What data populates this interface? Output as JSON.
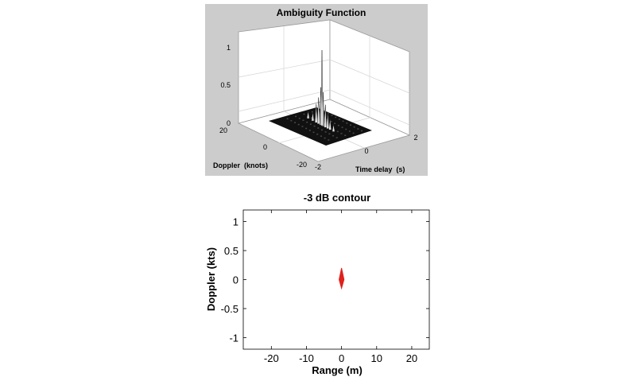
{
  "chart_data": [
    {
      "type": "surface",
      "title": "Ambiguity Function",
      "xlabel": "Time delay  (s)",
      "ylabel": "Doppler  (knots)",
      "zlabel": "",
      "x_ticks": [
        "-2",
        "0",
        "2"
      ],
      "y_ticks": [
        "-20",
        "0",
        "20"
      ],
      "z_ticks": [
        "0",
        "0.5",
        "1"
      ],
      "xlim": [
        -2,
        2
      ],
      "ylim": [
        -20,
        20
      ],
      "zlim": [
        0,
        1
      ],
      "peak": {
        "x": 0,
        "y": 0,
        "z": 1.0
      },
      "sidelobes": [
        {
          "x": -0.5,
          "y": 0,
          "z": 0.25
        },
        {
          "x": -0.3,
          "y": 0,
          "z": 0.35
        },
        {
          "x": -0.1,
          "y": 0,
          "z": 0.5
        },
        {
          "x": 0.1,
          "y": 0,
          "z": 0.45
        },
        {
          "x": 0.3,
          "y": 0,
          "z": 0.3
        },
        {
          "x": 0.5,
          "y": 0,
          "z": 0.22
        },
        {
          "x": 0.7,
          "y": 0,
          "z": 0.15
        },
        {
          "x": -0.8,
          "y": 0,
          "z": 0.12
        },
        {
          "x": -1.2,
          "y": 0,
          "z": 0.1
        },
        {
          "x": 1.0,
          "y": 0,
          "z": 0.1
        }
      ],
      "background": "#cccccc",
      "surface_color": "#111111",
      "grid": true
    },
    {
      "type": "contour",
      "title": "-3 dB contour",
      "xlabel": "Range (m)",
      "ylabel": "Doppler (kts)",
      "xlim": [
        -28,
        25
      ],
      "ylim": [
        -1.2,
        1.2
      ],
      "x_ticks": [
        "-20",
        "-10",
        "0",
        "10",
        "20"
      ],
      "y_ticks": [
        "1",
        "0.5",
        "0",
        "-0.5",
        "-1"
      ],
      "contour": {
        "x_center": 0,
        "x_halfwidth": 0.7,
        "y_min": -0.15,
        "y_max": 0.2
      },
      "color": "#e0211c",
      "grid": false
    }
  ]
}
